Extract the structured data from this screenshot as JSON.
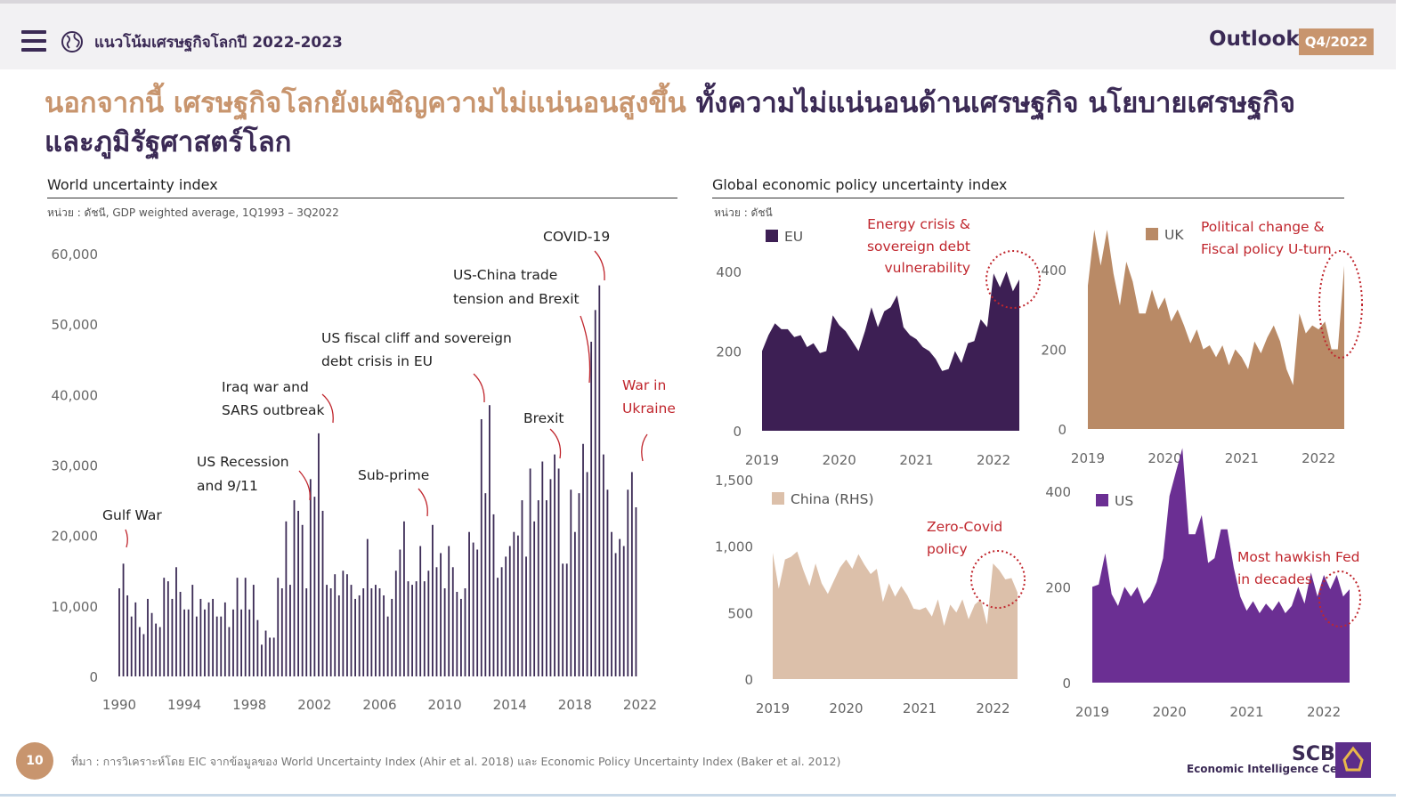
{
  "header": {
    "menu_icon": "hamburger-menu-icon",
    "globe_icon": "globe-icon",
    "app_title": "แนวโน้มเศรษฐกิจโลกปี 2022-2023",
    "outlook_label": "Outlook",
    "quarter_badge": "Q4/2022"
  },
  "headline": {
    "part1": "นอกจากนี้ เศรษฐกิจโลกยังเผชิญความไม่แน่นอนสูงขึ้น ",
    "part2": "ทั้งความไม่แน่นอนด้านเศรษฐกิจ นโยบายเศรษฐกิจ และภูมิรัฐศาสตร์โลก"
  },
  "colors": {
    "brand_purple": "#3b2a55",
    "accent_orange": "#c8956e",
    "wui_bar": "#3b2a55",
    "eu": "#3d1f54",
    "uk": "#b98a66",
    "china": "#dcc0aa",
    "us": "#6b2f93",
    "annotation_red": "#c0262d"
  },
  "footer": {
    "page_number": "10",
    "source": "ที่มา : การวิเคราะห์โดย EIC จากข้อมูลของ World Uncertainty Index (Ahir et al. 2018) และ Economic Policy Uncertainty Index (Baker et al. 2012)",
    "brand": "SCB",
    "brand_sub": "Economic Intelligence Center",
    "logo_icon": "scb-logo-icon"
  },
  "chart_data": [
    {
      "type": "bar",
      "title": "World uncertainty index",
      "unit_note": "หน่วย : ดัชนี, GDP weighted average, 1Q1993 – 3Q2022",
      "ylim": [
        0,
        60000
      ],
      "yticks": [
        "0",
        "10,000",
        "20,000",
        "30,000",
        "40,000",
        "50,000",
        "60,000"
      ],
      "ytick_values": [
        0,
        10000,
        20000,
        30000,
        40000,
        50000,
        60000
      ],
      "xticks": [
        "1990",
        "1994",
        "1998",
        "2002",
        "2006",
        "2010",
        "2014",
        "2018",
        "2022"
      ],
      "xtick_values": [
        1990,
        1994,
        1998,
        2002,
        2006,
        2010,
        2014,
        2018,
        2022
      ],
      "x_start": 1990.0,
      "x_step": 0.25,
      "values": [
        12500,
        16000,
        11500,
        8500,
        10500,
        7000,
        6000,
        11000,
        9000,
        7500,
        7000,
        14000,
        13500,
        11000,
        15500,
        12000,
        9500,
        9500,
        13000,
        8500,
        11000,
        9500,
        10500,
        11000,
        8500,
        8500,
        10500,
        7000,
        9500,
        14000,
        9500,
        14000,
        9500,
        13000,
        8000,
        4500,
        6500,
        5500,
        5500,
        14000,
        12500,
        22000,
        13000,
        25000,
        23500,
        21500,
        12500,
        28000,
        25500,
        34500,
        23500,
        13000,
        12500,
        14500,
        11500,
        15000,
        14500,
        13000,
        11000,
        11500,
        12500,
        19500,
        12500,
        13000,
        12500,
        11500,
        8500,
        11000,
        15000,
        18000,
        22000,
        13500,
        13000,
        13500,
        18500,
        13500,
        15000,
        21500,
        15500,
        17500,
        12500,
        18500,
        15500,
        12000,
        11000,
        12500,
        20500,
        19000,
        18000,
        36500,
        26000,
        38500,
        23000,
        14000,
        15500,
        17000,
        18500,
        20500,
        20000,
        25000,
        17000,
        29500,
        22000,
        25000,
        30500,
        25000,
        28000,
        31500,
        29500,
        16000,
        16000,
        26500,
        20500,
        26000,
        33000,
        29000,
        47500,
        52000,
        55500,
        31500,
        26500,
        20500,
        17500,
        19500,
        18500,
        26500,
        29000,
        24000
      ],
      "annotations": [
        {
          "label": "Gulf War"
        },
        {
          "label": "US Recession and 9/11"
        },
        {
          "label": "Iraq war and SARS outbreak"
        },
        {
          "label": "Sub-prime"
        },
        {
          "label": "US fiscal cliff and sovereign debt crisis in EU"
        },
        {
          "label": "US-China trade tension and Brexit"
        },
        {
          "label": "COVID-19"
        },
        {
          "label": "Brexit"
        },
        {
          "label": "War in Ukraine"
        }
      ]
    },
    {
      "type": "area",
      "group_title": "Global economic policy uncertainty index",
      "unit_note": "หน่วย : ดัชนี",
      "panels": [
        {
          "name": "EU",
          "ylim": [
            0,
            400
          ],
          "yticks": [
            "0",
            "200",
            "400"
          ],
          "ytick_values": [
            0,
            200,
            400
          ],
          "xticks": [
            "2019",
            "2020",
            "2021",
            "2022"
          ],
          "x": [
            2019.0,
            2019.083,
            2019.167,
            2019.25,
            2019.333,
            2019.417,
            2019.5,
            2019.583,
            2019.667,
            2019.75,
            2019.833,
            2019.917,
            2020.0,
            2020.083,
            2020.167,
            2020.25,
            2020.333,
            2020.417,
            2020.5,
            2020.583,
            2020.667,
            2020.75,
            2020.833,
            2020.917,
            2021.0,
            2021.083,
            2021.167,
            2021.25,
            2021.333,
            2021.417,
            2021.5,
            2021.583,
            2021.667,
            2021.75,
            2021.833,
            2021.917,
            2022.0,
            2022.083,
            2022.167,
            2022.25,
            2022.333
          ],
          "values": [
            200,
            240,
            270,
            255,
            255,
            235,
            240,
            210,
            220,
            195,
            200,
            290,
            265,
            250,
            225,
            200,
            250,
            310,
            260,
            300,
            310,
            340,
            260,
            240,
            230,
            210,
            200,
            180,
            150,
            155,
            200,
            170,
            220,
            225,
            280,
            260,
            395,
            360,
            400,
            350,
            380
          ],
          "annotation": "Energy crisis & sovereign debt vulnerability"
        },
        {
          "name": "UK",
          "ylim": [
            0,
            400
          ],
          "yticks": [
            "0",
            "200",
            "400"
          ],
          "ytick_values": [
            0,
            200,
            400
          ],
          "xticks": [
            "2019",
            "2020",
            "2021",
            "2022"
          ],
          "x": [
            2019.0,
            2019.083,
            2019.167,
            2019.25,
            2019.333,
            2019.417,
            2019.5,
            2019.583,
            2019.667,
            2019.75,
            2019.833,
            2019.917,
            2020.0,
            2020.083,
            2020.167,
            2020.25,
            2020.333,
            2020.417,
            2020.5,
            2020.583,
            2020.667,
            2020.75,
            2020.833,
            2020.917,
            2021.0,
            2021.083,
            2021.167,
            2021.25,
            2021.333,
            2021.417,
            2021.5,
            2021.583,
            2021.667,
            2021.75,
            2021.833,
            2021.917,
            2022.0,
            2022.083,
            2022.167,
            2022.25,
            2022.333
          ],
          "values": [
            360,
            500,
            410,
            500,
            390,
            310,
            420,
            370,
            290,
            290,
            350,
            300,
            330,
            270,
            300,
            260,
            215,
            250,
            200,
            210,
            180,
            210,
            160,
            200,
            180,
            150,
            220,
            190,
            230,
            260,
            220,
            150,
            110,
            290,
            240,
            260,
            250,
            270,
            200,
            200,
            410
          ],
          "annotation": "Political change & Fiscal policy U-turn"
        },
        {
          "name": "China (RHS)",
          "ylim": [
            0,
            1500
          ],
          "yticks": [
            "0",
            "500",
            "1,000",
            "1,500"
          ],
          "ytick_values": [
            0,
            500,
            1000,
            1500
          ],
          "xticks": [
            "2019",
            "2020",
            "2021",
            "2022"
          ],
          "x": [
            2019.0,
            2019.083,
            2019.167,
            2019.25,
            2019.333,
            2019.417,
            2019.5,
            2019.583,
            2019.667,
            2019.75,
            2019.833,
            2019.917,
            2020.0,
            2020.083,
            2020.167,
            2020.25,
            2020.333,
            2020.417,
            2020.5,
            2020.583,
            2020.667,
            2020.75,
            2020.833,
            2020.917,
            2021.0,
            2021.083,
            2021.167,
            2021.25,
            2021.333,
            2021.417,
            2021.5,
            2021.583,
            2021.667,
            2021.75,
            2021.833,
            2021.917,
            2022.0,
            2022.083,
            2022.167,
            2022.25,
            2022.333
          ],
          "values": [
            950,
            680,
            900,
            920,
            960,
            820,
            700,
            870,
            720,
            640,
            740,
            840,
            900,
            830,
            940,
            860,
            790,
            830,
            580,
            720,
            620,
            700,
            630,
            530,
            520,
            540,
            470,
            600,
            400,
            560,
            500,
            600,
            450,
            560,
            600,
            410,
            870,
            820,
            750,
            760,
            650
          ],
          "annotation": "Zero-Covid policy"
        },
        {
          "name": "US",
          "ylim": [
            0,
            500
          ],
          "yticks": [
            "0",
            "200",
            "400"
          ],
          "ytick_values": [
            0,
            200,
            400
          ],
          "xticks": [
            "2019",
            "2020",
            "2021",
            "2022"
          ],
          "x": [
            2019.0,
            2019.083,
            2019.167,
            2019.25,
            2019.333,
            2019.417,
            2019.5,
            2019.583,
            2019.667,
            2019.75,
            2019.833,
            2019.917,
            2020.0,
            2020.083,
            2020.167,
            2020.25,
            2020.333,
            2020.417,
            2020.5,
            2020.583,
            2020.667,
            2020.75,
            2020.833,
            2020.917,
            2021.0,
            2021.083,
            2021.167,
            2021.25,
            2021.333,
            2021.417,
            2021.5,
            2021.583,
            2021.667,
            2021.75,
            2021.833,
            2021.917,
            2022.0,
            2022.083,
            2022.167,
            2022.25,
            2022.333
          ],
          "values": [
            200,
            205,
            270,
            185,
            160,
            200,
            180,
            200,
            165,
            180,
            210,
            260,
            390,
            440,
            490,
            310,
            310,
            350,
            250,
            260,
            320,
            320,
            240,
            180,
            150,
            170,
            145,
            165,
            150,
            170,
            145,
            160,
            200,
            165,
            230,
            180,
            225,
            195,
            225,
            180,
            195
          ],
          "annotation": "Most hawkish Fed in decades"
        }
      ]
    }
  ]
}
